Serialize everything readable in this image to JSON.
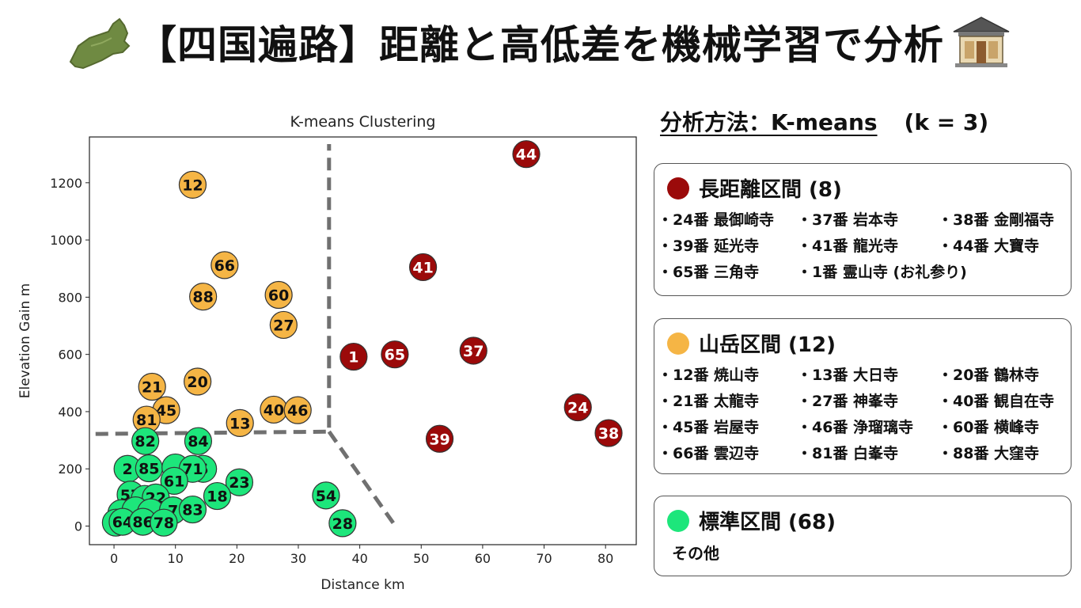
{
  "title": "【四国遍路】距離と高低差を機械学習で分析",
  "icons": {
    "left": "shikoku-map-icon",
    "right": "temple-icon"
  },
  "colors": {
    "long": "#9b0a0a",
    "mountain": "#f5b545",
    "standard": "#1de67b",
    "boundary": "#707070"
  },
  "method": {
    "label": "分析方法：K-means",
    "k": "(k = 3)"
  },
  "panels": {
    "long": {
      "heading": "長距離区間 (8)",
      "items": [
        "・24番 最御崎寺",
        "・37番 岩本寺",
        "・38番 金剛福寺",
        "・39番 延光寺",
        "・41番 龍光寺",
        "・44番 大寶寺",
        "・65番 三角寺",
        "・1番 霊山寺 (お礼参り)"
      ]
    },
    "mountain": {
      "heading": "山岳区間 (12)",
      "items": [
        "・12番 焼山寺",
        "・13番 大日寺",
        "・20番 鶴林寺",
        "・21番 太龍寺",
        "・27番 神峯寺",
        "・40番 観自在寺",
        "・45番 岩屋寺",
        "・46番 浄瑠璃寺",
        "・60番 横峰寺",
        "・66番 雲辺寺",
        "・81番 白峯寺",
        "・88番 大窪寺"
      ]
    },
    "standard": {
      "heading": "標準区間 (68)",
      "note": "その他"
    }
  },
  "chart_data": {
    "type": "scatter",
    "title": "K-means Clustering",
    "xlabel": "Distance km",
    "ylabel": "Elevation Gain  m",
    "xlim": [
      -4,
      85
    ],
    "ylim": [
      -65,
      1360
    ],
    "xticks": [
      0,
      10,
      20,
      30,
      40,
      50,
      60,
      70,
      80
    ],
    "yticks": [
      0,
      200,
      400,
      600,
      800,
      1000,
      1200
    ],
    "grid": false,
    "series": [
      {
        "cluster": "long",
        "points": [
          {
            "label": "44",
            "x": 67.1,
            "y": 1300
          },
          {
            "label": "41",
            "x": 50.3,
            "y": 905
          },
          {
            "label": "1",
            "x": 39.0,
            "y": 592
          },
          {
            "label": "65",
            "x": 45.7,
            "y": 600
          },
          {
            "label": "37",
            "x": 58.5,
            "y": 613
          },
          {
            "label": "24",
            "x": 75.5,
            "y": 415
          },
          {
            "label": "38",
            "x": 80.5,
            "y": 325
          },
          {
            "label": "39",
            "x": 53.0,
            "y": 305
          }
        ]
      },
      {
        "cluster": "mountain",
        "points": [
          {
            "label": "12",
            "x": 12.8,
            "y": 1193
          },
          {
            "label": "66",
            "x": 18.0,
            "y": 912
          },
          {
            "label": "88",
            "x": 14.5,
            "y": 802
          },
          {
            "label": "60",
            "x": 26.8,
            "y": 808
          },
          {
            "label": "27",
            "x": 27.6,
            "y": 703
          },
          {
            "label": "21",
            "x": 6.2,
            "y": 487
          },
          {
            "label": "20",
            "x": 13.6,
            "y": 505
          },
          {
            "label": "45",
            "x": 8.5,
            "y": 405
          },
          {
            "label": "81",
            "x": 5.3,
            "y": 372
          },
          {
            "label": "13",
            "x": 20.5,
            "y": 360
          },
          {
            "label": "40",
            "x": 26.0,
            "y": 407
          },
          {
            "label": "46",
            "x": 29.9,
            "y": 405
          }
        ]
      },
      {
        "cluster": "standard",
        "points": [
          {
            "label": "82",
            "x": 5.1,
            "y": 297
          },
          {
            "label": "84",
            "x": 13.7,
            "y": 297
          },
          {
            "label": "2",
            "x": 2.2,
            "y": 200
          },
          {
            "label": "85",
            "x": 5.7,
            "y": 202
          },
          {
            "label": "",
            "x": 10.0,
            "y": 205
          },
          {
            "label": "6",
            "x": 14.5,
            "y": 200
          },
          {
            "label": "71",
            "x": 12.8,
            "y": 200
          },
          {
            "label": "61",
            "x": 9.8,
            "y": 158
          },
          {
            "label": "23",
            "x": 20.4,
            "y": 153
          },
          {
            "label": "57",
            "x": 2.7,
            "y": 110
          },
          {
            "label": "",
            "x": 5.0,
            "y": 95
          },
          {
            "label": "22",
            "x": 6.8,
            "y": 100
          },
          {
            "label": "18",
            "x": 16.8,
            "y": 105
          },
          {
            "label": "54",
            "x": 34.5,
            "y": 107
          },
          {
            "label": "",
            "x": 1.2,
            "y": 45
          },
          {
            "label": "",
            "x": 3.5,
            "y": 55
          },
          {
            "label": "",
            "x": 6.0,
            "y": 48
          },
          {
            "label": "7",
            "x": 9.6,
            "y": 55
          },
          {
            "label": "83",
            "x": 12.8,
            "y": 58
          },
          {
            "label": "",
            "x": 0.3,
            "y": 12
          },
          {
            "label": "64",
            "x": 1.4,
            "y": 15
          },
          {
            "label": "86",
            "x": 4.7,
            "y": 15
          },
          {
            "label": "78",
            "x": 8.1,
            "y": 12
          },
          {
            "label": "28",
            "x": 37.2,
            "y": 10
          }
        ]
      }
    ],
    "boundaries": [
      [
        [
          -3,
          322
        ],
        [
          35,
          330
        ],
        [
          35,
          1335
        ]
      ],
      [
        [
          35,
          330
        ],
        [
          45.8,
          0
        ]
      ]
    ]
  }
}
